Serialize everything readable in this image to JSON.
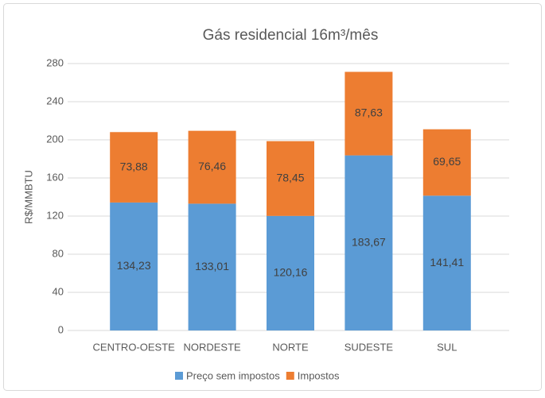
{
  "chart_data": {
    "type": "bar",
    "stacked": true,
    "title": "Gás residencial 16m³/mês",
    "y_label": "R$/MMBTU",
    "categories": [
      "CENTRO-OESTE",
      "NORDESTE",
      "NORTE",
      "SUDESTE",
      "SUL"
    ],
    "series": [
      {
        "name": "Preço sem impostos",
        "color": "#5b9bd5",
        "values": [
          134.23,
          133.01,
          120.16,
          183.67,
          141.41
        ],
        "value_labels": [
          "134,23",
          "133,01",
          "120,16",
          "183,67",
          "141,41"
        ]
      },
      {
        "name": "Impostos",
        "color": "#ed7d31",
        "values": [
          73.88,
          76.46,
          78.45,
          87.63,
          69.65
        ],
        "value_labels": [
          "73,88",
          "76,46",
          "78,45",
          "87,63",
          "69,65"
        ]
      }
    ],
    "ylim": [
      0,
      280
    ],
    "yticks": [
      0,
      40,
      80,
      120,
      160,
      200,
      240,
      280
    ],
    "grid": true,
    "legend": "bottom"
  }
}
